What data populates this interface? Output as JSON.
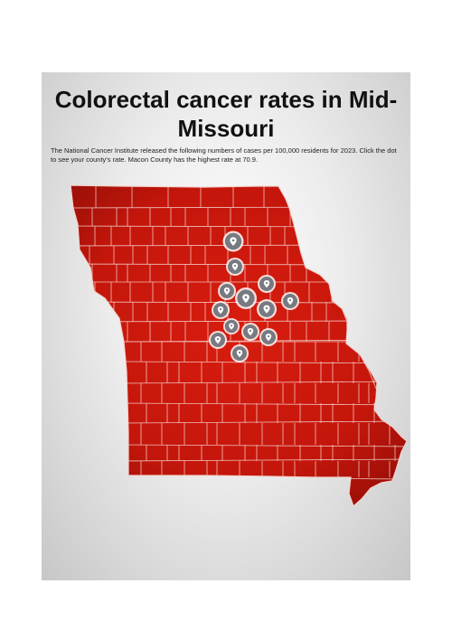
{
  "header": {
    "title": "Colorectal cancer rates in Mid-Missouri",
    "description": "The National Cancer Institute released the following numbers of cases per 100,000 residents for 2023. Click the dot to see your county's rate. Macon County has the highest rate at 70.9."
  },
  "map": {
    "region": "Missouri counties",
    "fill_color": "#c8170c",
    "border_color": "#f4d4cf",
    "pin_color": "#777a80",
    "pin_icon": "location-pin-icon",
    "pin_count": 13
  }
}
